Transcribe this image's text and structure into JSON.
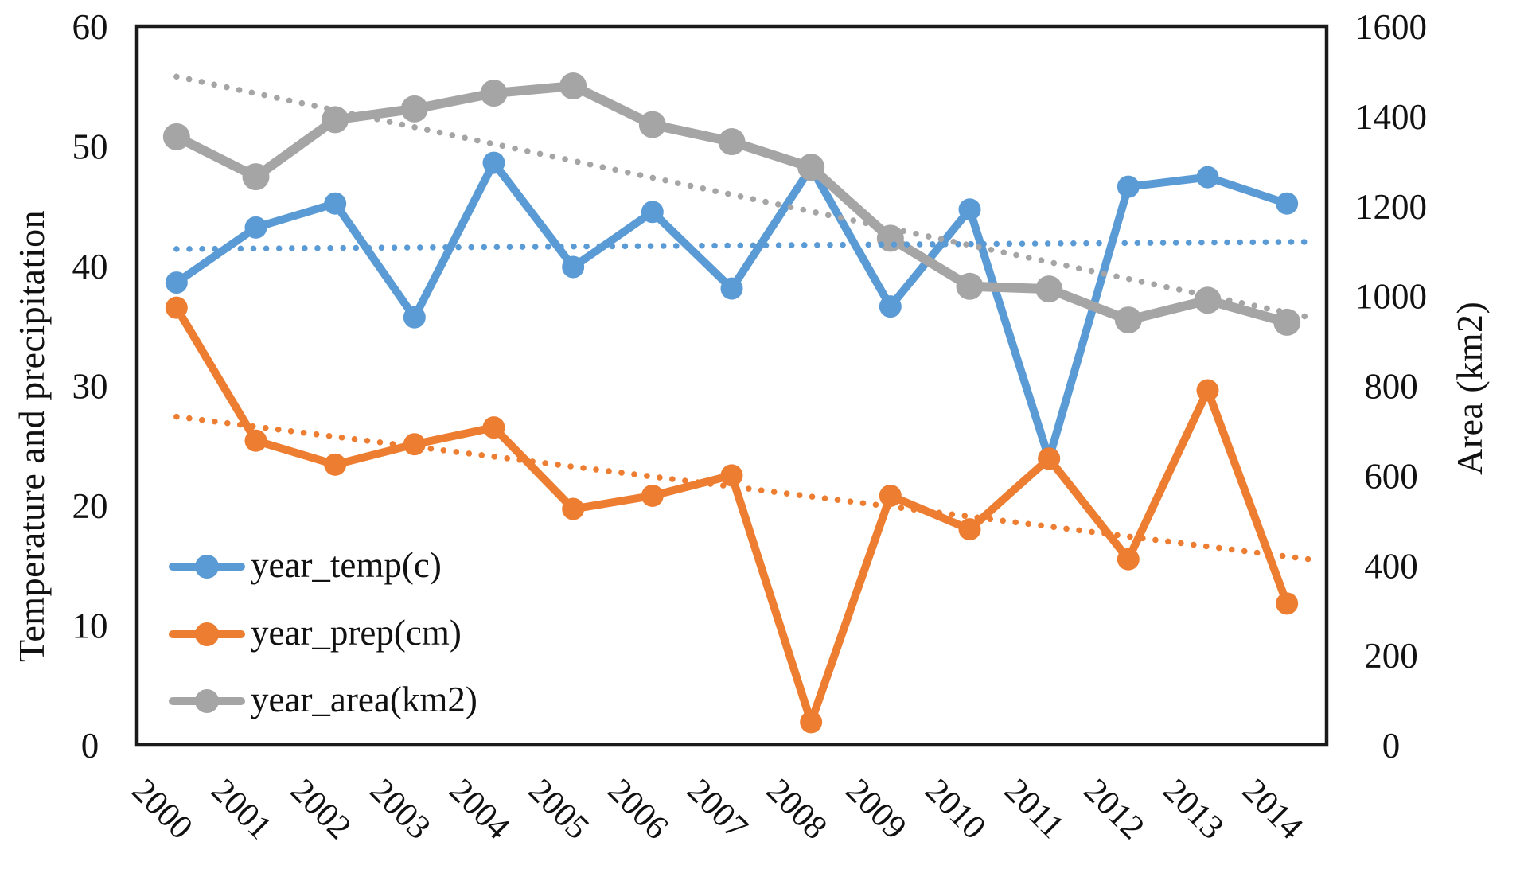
{
  "chart_data": {
    "type": "line",
    "title": "",
    "categories": [
      "2000",
      "2001",
      "2002",
      "2003",
      "2004",
      "2005",
      "2006",
      "2007",
      "2008",
      "2009",
      "2010",
      "2011",
      "2012",
      "2013",
      "2014"
    ],
    "left_axis": {
      "title": "Temperature and precipitation",
      "min": 0,
      "max": 60,
      "tick_step": 10,
      "tick_labels": [
        "0",
        "10",
        "20",
        "30",
        "40",
        "50",
        "60"
      ]
    },
    "right_axis": {
      "title": "Area (km2)",
      "min": 0,
      "max": 1600,
      "tick_step": 200,
      "tick_labels": [
        "0",
        "200",
        "400",
        "600",
        "800",
        "1000",
        "1200",
        "1400",
        "1600"
      ]
    },
    "grid": false,
    "legend": {
      "position": "inside-bottom-left",
      "entries": [
        "year_temp(c)",
        "year_prep(cm)",
        "year_area(km2)"
      ]
    },
    "series": [
      {
        "name": "year_temp(c)",
        "axis": "left",
        "color": "#5B9BD5",
        "marker": "circle",
        "values": [
          38.6,
          43.2,
          45.2,
          35.7,
          48.6,
          39.9,
          44.5,
          38.1,
          48.2,
          36.6,
          44.7,
          23.9,
          46.6,
          47.4,
          45.2
        ],
        "trendline": {
          "style": "dotted",
          "start": 41.4,
          "end": 42.0
        }
      },
      {
        "name": "year_prep(cm)",
        "axis": "left",
        "color": "#ED7D31",
        "marker": "circle",
        "values": [
          36.5,
          25.4,
          23.4,
          25.1,
          26.5,
          19.7,
          20.8,
          22.5,
          1.9,
          20.8,
          18.0,
          23.9,
          15.5,
          29.6,
          11.8
        ],
        "trendline": {
          "style": "dotted",
          "start": 27.4,
          "end": 15.5
        }
      },
      {
        "name": "year_area(km2)",
        "axis": "right",
        "color": "#A5A5A5",
        "marker": "circle",
        "values": [
          1354,
          1265,
          1392,
          1416,
          1451,
          1467,
          1381,
          1343,
          1286,
          1128,
          1021,
          1015,
          946,
          990,
          941
        ],
        "trendline": {
          "style": "dotted",
          "start": 1488,
          "end": 952
        }
      }
    ]
  }
}
